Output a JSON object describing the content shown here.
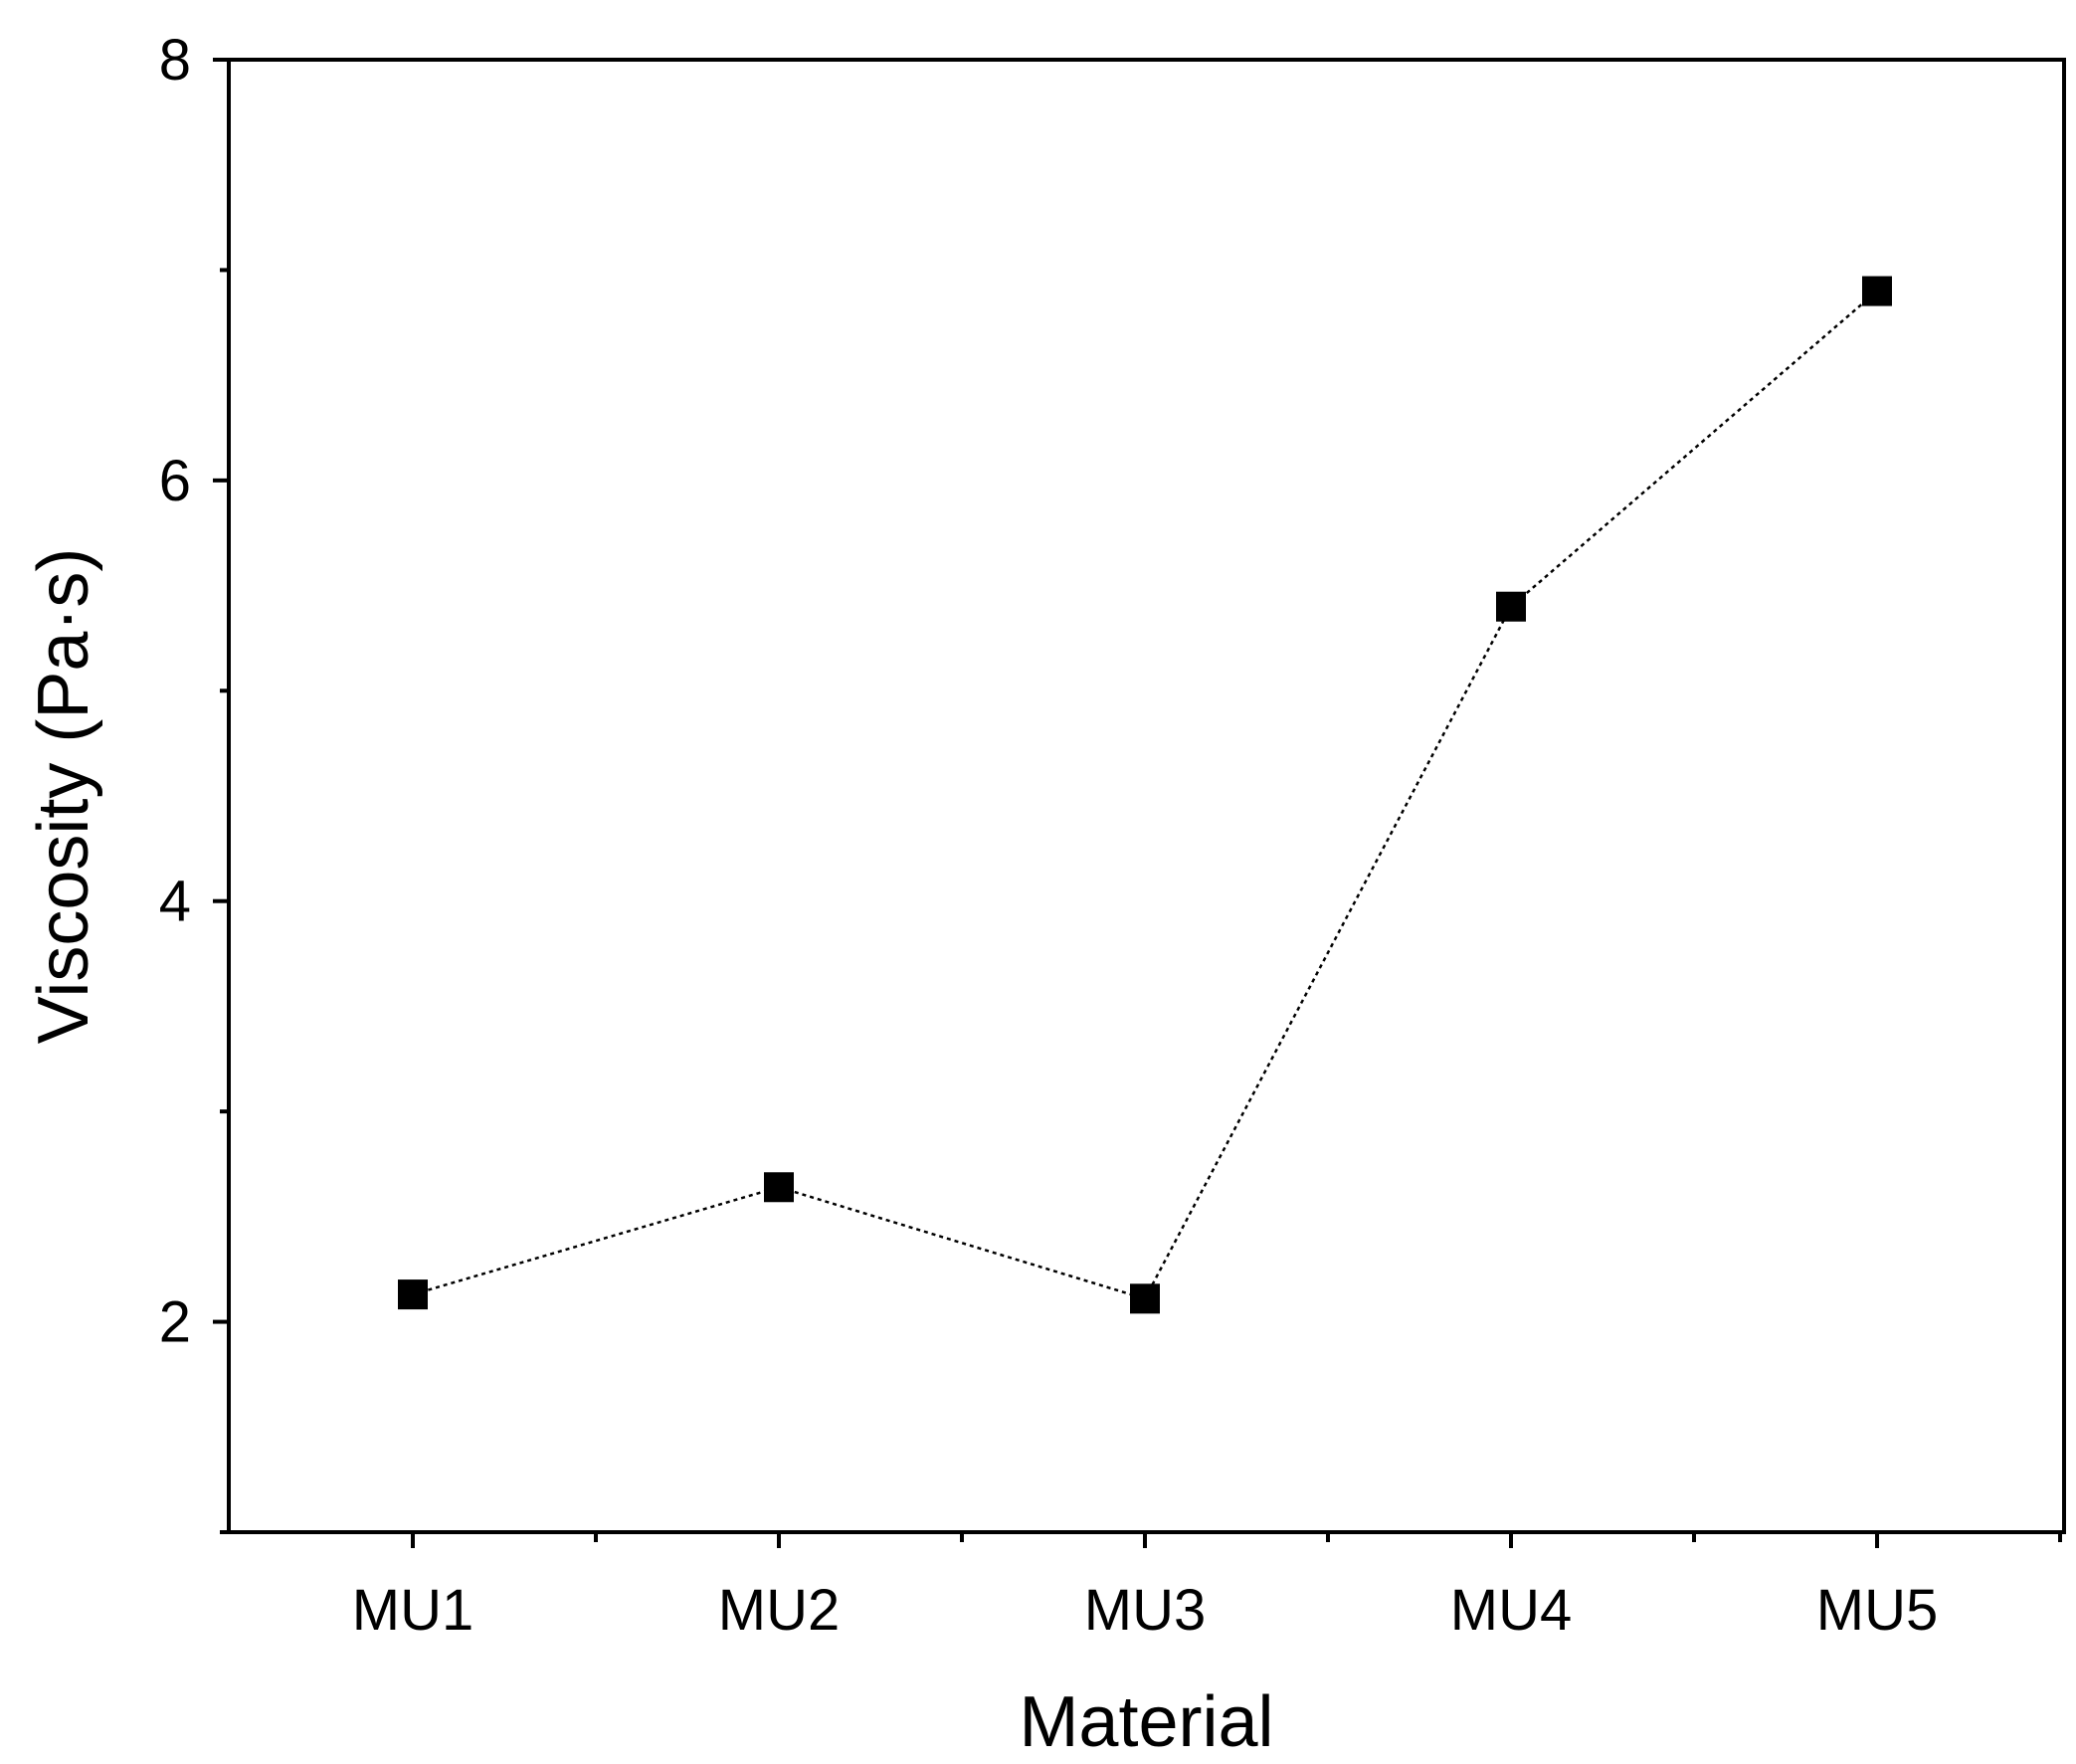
{
  "chart_data": {
    "type": "line",
    "title": "",
    "xlabel": "Material",
    "ylabel": "Viscosity (Pa·s)",
    "categories": [
      "MU1",
      "MU2",
      "MU3",
      "MU4",
      "MU5"
    ],
    "series": [
      {
        "values": [
          2.13,
          2.64,
          2.11,
          5.4,
          6.9
        ],
        "marker": "square",
        "line_style": "dotted",
        "color": "#000000"
      }
    ],
    "ylim": [
      1,
      8
    ],
    "y_ticks": [
      2,
      4,
      6,
      8
    ],
    "grid": false,
    "legend": "none"
  }
}
